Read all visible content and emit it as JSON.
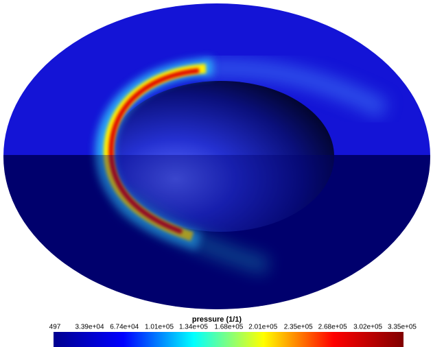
{
  "colorbar": {
    "title": "pressure (1/1)",
    "colors": [
      "#00008f",
      "#0000ff",
      "#00ffff",
      "#ffff00",
      "#ff0000",
      "#800000"
    ],
    "ticks": [
      497,
      {
        "value": 33900,
        "label": "3.39e+04"
      },
      {
        "value": 67400,
        "label": "6.74e+04"
      },
      {
        "value": 101000,
        "label": "1.01e+05"
      },
      {
        "value": 134000,
        "label": "1.34e+05"
      },
      {
        "value": 168000,
        "label": "1.68e+05"
      },
      {
        "value": 201000,
        "label": "2.01e+05"
      },
      {
        "value": 235000,
        "label": "2.35e+05"
      },
      {
        "value": 268000,
        "label": "2.68e+05"
      },
      {
        "value": 302000,
        "label": "3.02e+05"
      },
      {
        "value": 335000,
        "label": "3.35e+05"
      }
    ]
  }
}
